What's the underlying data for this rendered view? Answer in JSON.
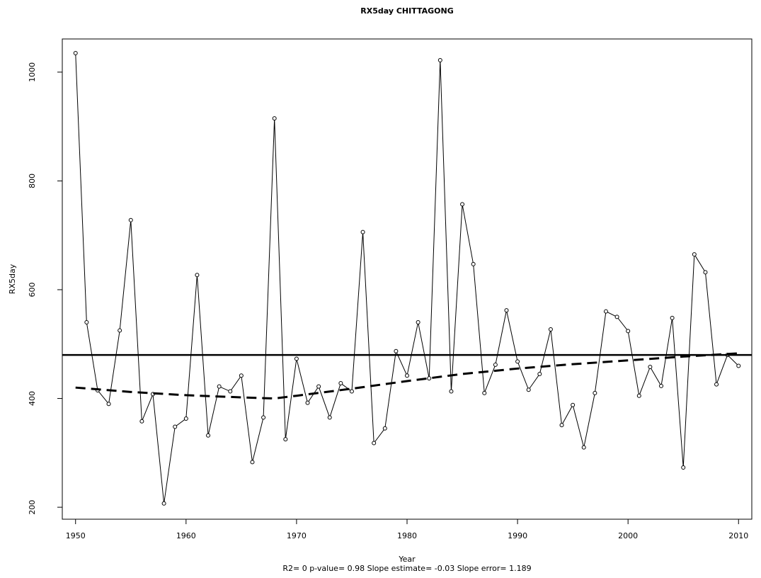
{
  "chart_data": {
    "type": "line",
    "title": "RX5day   CHITTAGONG",
    "xlabel": "Year",
    "ylabel": "RX5day",
    "footnote": "R2= 0  p-value= 0.98  Slope estimate= -0.03  Slope error= 1.189",
    "x": [
      1950,
      1951,
      1952,
      1953,
      1954,
      1955,
      1956,
      1957,
      1958,
      1959,
      1960,
      1961,
      1962,
      1963,
      1964,
      1965,
      1966,
      1967,
      1968,
      1969,
      1970,
      1971,
      1972,
      1973,
      1974,
      1975,
      1976,
      1977,
      1978,
      1979,
      1980,
      1981,
      1982,
      1983,
      1984,
      1985,
      1986,
      1987,
      1988,
      1989,
      1990,
      1991,
      1992,
      1993,
      1994,
      1995,
      1996,
      1997,
      1998,
      1999,
      2000,
      2001,
      2002,
      2003,
      2004,
      2005,
      2006,
      2007,
      2008,
      2009,
      2010
    ],
    "series": [
      {
        "color": "#000000",
        "markers": true,
        "values": [
          1035,
          540,
          415,
          390,
          525,
          728,
          358,
          408,
          207,
          348,
          363,
          627,
          332,
          422,
          413,
          442,
          283,
          365,
          915,
          325,
          473,
          392,
          422,
          365,
          428,
          413,
          706,
          318,
          345,
          487,
          442,
          540,
          437,
          1022,
          413,
          757,
          647,
          410,
          462,
          562,
          468,
          416,
          445,
          527,
          351,
          388,
          310,
          410,
          560,
          550,
          524,
          405,
          458,
          423,
          548,
          273,
          665,
          632,
          426,
          480,
          460
        ]
      },
      {
        "color": "#000000",
        "dashed": true,
        "x": [
          1950,
          1955,
          1960,
          1965,
          1968,
          1970,
          1975,
          1980,
          1985,
          1990,
          1995,
          2000,
          2005,
          2010
        ],
        "values": [
          420,
          412,
          406,
          402,
          400,
          405,
          418,
          432,
          445,
          455,
          463,
          470,
          477,
          483
        ]
      }
    ],
    "hline": 480,
    "xlim": [
      1948.8,
      2011.2
    ],
    "ylim": [
      178,
      1061
    ],
    "xticks": [
      1950,
      1960,
      1970,
      1980,
      1990,
      2000,
      2010
    ],
    "yticks": [
      200,
      400,
      600,
      800,
      1000
    ]
  }
}
